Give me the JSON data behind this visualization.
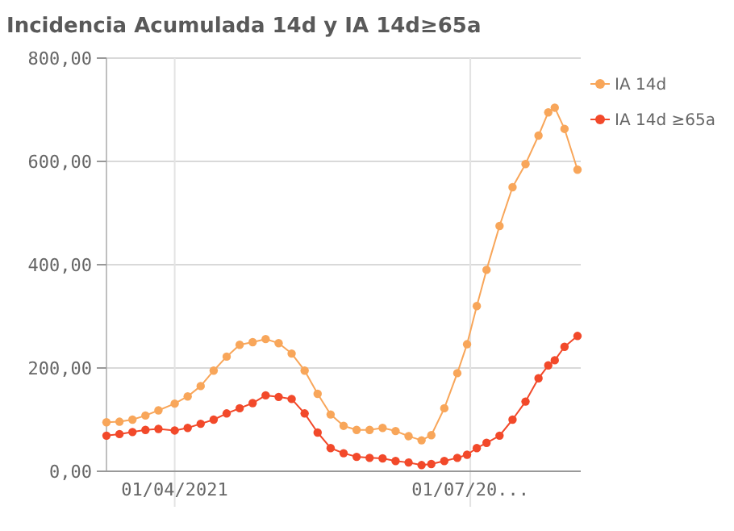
{
  "chart_data": {
    "type": "line",
    "title": "Incidencia Acumulada 14d y IA 14d≥65a",
    "x": [
      "2021-03-11",
      "2021-03-15",
      "2021-03-19",
      "2021-03-23",
      "2021-03-27",
      "2021-04-01",
      "2021-04-05",
      "2021-04-09",
      "2021-04-13",
      "2021-04-17",
      "2021-04-21",
      "2021-04-25",
      "2021-04-29",
      "2021-05-03",
      "2021-05-07",
      "2021-05-11",
      "2021-05-15",
      "2021-05-19",
      "2021-05-23",
      "2021-05-27",
      "2021-05-31",
      "2021-06-04",
      "2021-06-08",
      "2021-06-12",
      "2021-06-16",
      "2021-06-19",
      "2021-06-23",
      "2021-06-27",
      "2021-06-30",
      "2021-07-03",
      "2021-07-06",
      "2021-07-10",
      "2021-07-14",
      "2021-07-18",
      "2021-07-22",
      "2021-07-25",
      "2021-07-27",
      "2021-07-30",
      "2021-08-03"
    ],
    "series": [
      {
        "name": "IA 14d",
        "color": "#f8a65a",
        "values": [
          95,
          96,
          100,
          108,
          118,
          131,
          145,
          165,
          195,
          222,
          245,
          250,
          256,
          248,
          228,
          195,
          150,
          110,
          88,
          80,
          80,
          84,
          78,
          68,
          60,
          70,
          122,
          190,
          246,
          320,
          390,
          475,
          550,
          595,
          650,
          695,
          704,
          663,
          584
        ]
      },
      {
        "name": "IA 14d ≥65a",
        "color": "#f2492a",
        "values": [
          69,
          72,
          76,
          80,
          82,
          79,
          84,
          92,
          100,
          112,
          122,
          132,
          147,
          144,
          140,
          112,
          75,
          45,
          35,
          28,
          26,
          25,
          20,
          17,
          12,
          14,
          20,
          26,
          32,
          45,
          55,
          69,
          100,
          135,
          180,
          205,
          215,
          241,
          262
        ]
      }
    ],
    "xlim": [
      "2021-03-11",
      "2021-08-04"
    ],
    "xticks": [
      {
        "value": "2021-04-01",
        "label": "01/04/2021"
      },
      {
        "value": "2021-07-01",
        "label": "01/07/20..."
      }
    ],
    "ylim": [
      0,
      800
    ],
    "yticks": [
      {
        "value": 0,
        "label": "0,00"
      },
      {
        "value": 200,
        "label": "200,00"
      },
      {
        "value": 400,
        "label": "400,00"
      },
      {
        "value": 600,
        "label": "600,00"
      },
      {
        "value": 800,
        "label": "800,00"
      }
    ],
    "grid": true,
    "legend": "top right",
    "marker": "circle",
    "line_style": "solid"
  }
}
